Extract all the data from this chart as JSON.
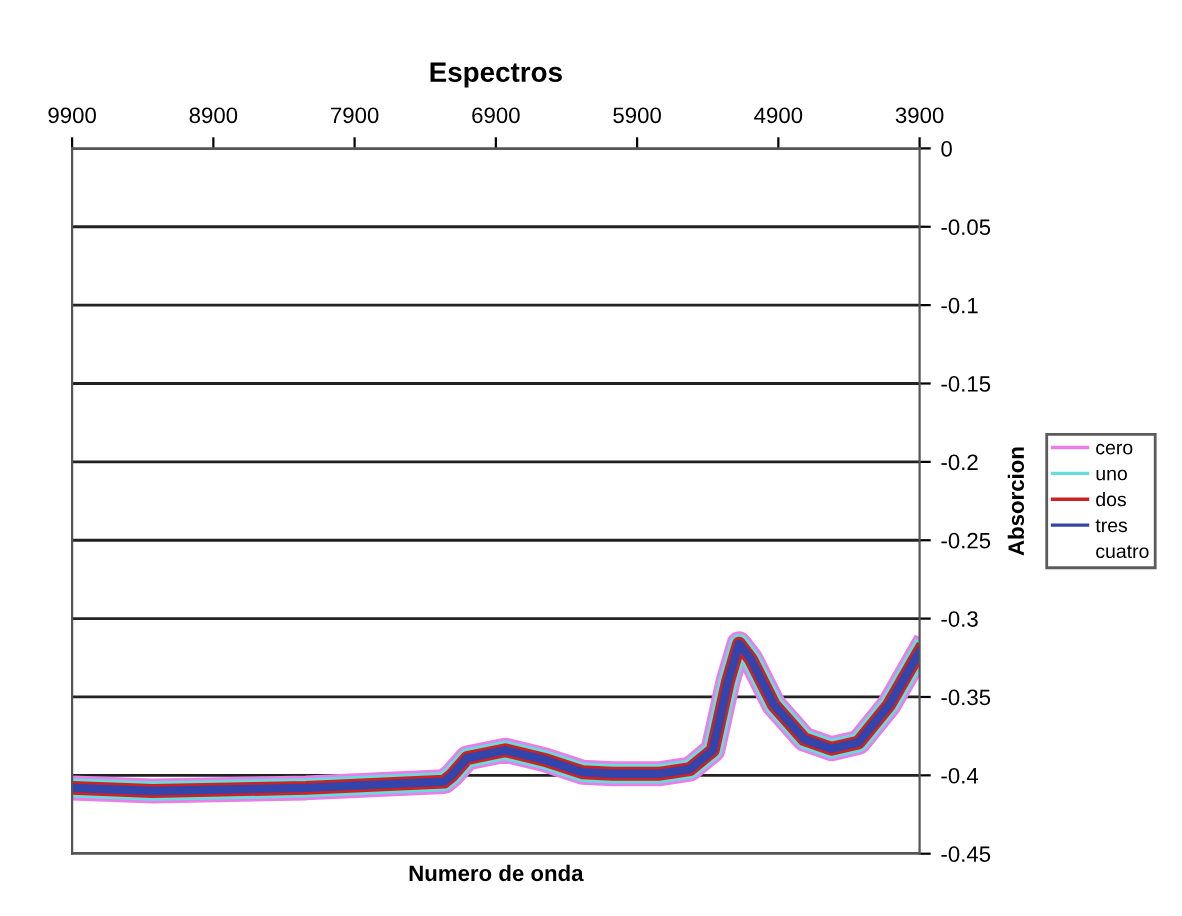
{
  "chart_data": {
    "type": "line",
    "title": "Espectros",
    "xlabel": "Numero de onda",
    "ylabel": "Absorcion",
    "x": [
      9900,
      9330,
      8244,
      7266,
      7212,
      7104,
      6833,
      6558,
      6288,
      6072,
      5748,
      5526,
      5364,
      5256,
      5178,
      5094,
      4932,
      4716,
      4524,
      4332,
      4116,
      3900
    ],
    "series": [
      {
        "name": "cero",
        "color": "#e87ee8",
        "values": [
          -0.408,
          -0.41,
          -0.408,
          -0.404,
          -0.4,
          -0.389,
          -0.384,
          -0.39,
          -0.398,
          -0.399,
          -0.399,
          -0.396,
          -0.384,
          -0.34,
          -0.316,
          -0.326,
          -0.355,
          -0.377,
          -0.383,
          -0.379,
          -0.355,
          -0.321
        ]
      },
      {
        "name": "uno",
        "color": "#66dddd",
        "values": [
          -0.408,
          -0.41,
          -0.408,
          -0.404,
          -0.4,
          -0.389,
          -0.384,
          -0.39,
          -0.398,
          -0.399,
          -0.399,
          -0.396,
          -0.384,
          -0.34,
          -0.316,
          -0.326,
          -0.355,
          -0.377,
          -0.383,
          -0.379,
          -0.355,
          -0.321
        ]
      },
      {
        "name": "dos",
        "color": "#cc2222",
        "values": [
          -0.408,
          -0.41,
          -0.408,
          -0.404,
          -0.4,
          -0.389,
          -0.384,
          -0.39,
          -0.398,
          -0.399,
          -0.399,
          -0.396,
          -0.384,
          -0.34,
          -0.316,
          -0.326,
          -0.355,
          -0.377,
          -0.383,
          -0.379,
          -0.355,
          -0.321
        ]
      },
      {
        "name": "tres",
        "color": "#3344aa",
        "values": [
          -0.408,
          -0.41,
          -0.408,
          -0.404,
          -0.4,
          -0.389,
          -0.384,
          -0.39,
          -0.398,
          -0.399,
          -0.399,
          -0.396,
          -0.384,
          -0.34,
          -0.316,
          -0.326,
          -0.355,
          -0.377,
          -0.383,
          -0.379,
          -0.355,
          -0.321
        ]
      },
      {
        "name": "cuatro",
        "color": null,
        "values": [
          null,
          null,
          null,
          null,
          null,
          null,
          null,
          null,
          null,
          null,
          null,
          null,
          null,
          null,
          null,
          null,
          null,
          null,
          null,
          null,
          null,
          null
        ]
      }
    ],
    "xlim": [
      9900,
      3900
    ],
    "xticks": [
      9900,
      8900,
      7900,
      6900,
      5900,
      4900,
      3900
    ],
    "ylim": [
      -0.45,
      0
    ],
    "yticks": [
      0,
      -0.05,
      -0.1,
      -0.15,
      -0.2,
      -0.25,
      -0.3,
      -0.35,
      -0.4,
      -0.45
    ],
    "grid": "y",
    "legend": "right",
    "marker": "none",
    "line_style": "solid"
  }
}
